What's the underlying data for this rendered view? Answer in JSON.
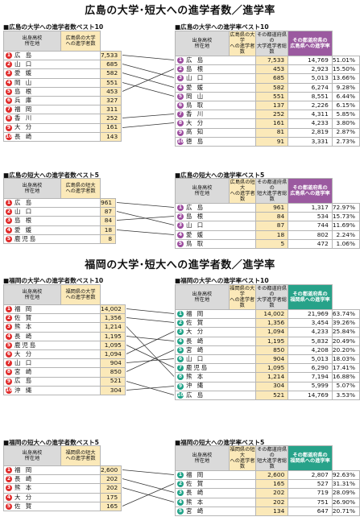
{
  "colors": {
    "red": "#e02b2b",
    "purple": "#9c4c9e",
    "green": "#20a287",
    "highlight_cream": "#fbe9b9",
    "highlight_purple": "#9b5aa0",
    "highlight_teal": "#27a289"
  },
  "sections": [
    {
      "title": "広島の大学･短大への進学者数／進学率",
      "blocks": [
        {
          "left": {
            "caption": "■広島の大学への進学者数ベスト10",
            "headers": [
              "出身高校\n所在地",
              "広島県の大学\nへの進学者数"
            ],
            "rows": [
              {
                "rank": "1",
                "name": "広 島",
                "value": "7,533"
              },
              {
                "rank": "2",
                "name": "山 口",
                "value": "685"
              },
              {
                "rank": "3",
                "name": "愛 媛",
                "value": "582"
              },
              {
                "rank": "4",
                "name": "岡 山",
                "value": "551"
              },
              {
                "rank": "5",
                "name": "島 根",
                "value": "453"
              },
              {
                "rank": "6",
                "name": "兵 庫",
                "value": "327"
              },
              {
                "rank": "7",
                "name": "福 岡",
                "value": "311"
              },
              {
                "rank": "8",
                "name": "香 川",
                "value": "252"
              },
              {
                "rank": "9",
                "name": "大 分",
                "value": "161"
              },
              {
                "rank": "10",
                "name": "長 崎",
                "value": "143"
              }
            ]
          },
          "right": {
            "caption": "■広島の大学への進学率ベスト10",
            "headers": [
              "出身高校\n所在地",
              "広島県の大学\nへの進学者数",
              "その都道府県の\n大学進学者総数",
              "その都道府県の\n広島県への進学率"
            ],
            "rows": [
              {
                "rank": "1",
                "name": "広 島",
                "value": "7,533",
                "total": "14,769",
                "rate": "51.01%"
              },
              {
                "rank": "2",
                "name": "島 根",
                "value": "453",
                "total": "2,923",
                "rate": "15.50%"
              },
              {
                "rank": "3",
                "name": "山 口",
                "value": "685",
                "total": "5,013",
                "rate": "13.66%"
              },
              {
                "rank": "4",
                "name": "愛 媛",
                "value": "582",
                "total": "6,274",
                "rate": "9.28%"
              },
              {
                "rank": "5",
                "name": "岡 山",
                "value": "551",
                "total": "8,551",
                "rate": "6.44%"
              },
              {
                "rank": "6",
                "name": "鳥 取",
                "value": "137",
                "total": "2,226",
                "rate": "6.15%"
              },
              {
                "rank": "7",
                "name": "香 川",
                "value": "252",
                "total": "4,311",
                "rate": "5.85%"
              },
              {
                "rank": "8",
                "name": "大 分",
                "value": "161",
                "total": "4,233",
                "rate": "3.80%"
              },
              {
                "rank": "9",
                "name": "高 知",
                "value": "81",
                "total": "2,819",
                "rate": "2.87%"
              },
              {
                "rank": "10",
                "name": "徳 島",
                "value": "91",
                "total": "3,331",
                "rate": "2.73%"
              }
            ]
          }
        },
        {
          "left": {
            "caption": "■広島の短大への進学者数ベスト5",
            "headers": [
              "出身高校\n所在地",
              "広島県の短大\nへの進学者数"
            ],
            "rows": [
              {
                "rank": "1",
                "name": "広 島",
                "value": "961"
              },
              {
                "rank": "2",
                "name": "山 口",
                "value": "87"
              },
              {
                "rank": "3",
                "name": "島 根",
                "value": "84"
              },
              {
                "rank": "4",
                "name": "愛 媛",
                "value": "18"
              },
              {
                "rank": "5",
                "name": "鹿児島",
                "value": "8"
              }
            ]
          },
          "right": {
            "caption": "■広島の短大への進学率ベスト5",
            "headers": [
              "出身高校\n所在地",
              "広島県の短大\nへの進学者数",
              "その都道府県の\n短大進学者総数",
              "その都道府県の\n広島県への進学率"
            ],
            "rows": [
              {
                "rank": "1",
                "name": "広 島",
                "value": "961",
                "total": "1,317",
                "rate": "72.97%"
              },
              {
                "rank": "2",
                "name": "島 根",
                "value": "84",
                "total": "534",
                "rate": "15.73%"
              },
              {
                "rank": "3",
                "name": "山 口",
                "value": "87",
                "total": "744",
                "rate": "11.69%"
              },
              {
                "rank": "4",
                "name": "愛 媛",
                "value": "18",
                "total": "802",
                "rate": "2.24%"
              },
              {
                "rank": "5",
                "name": "鳥 取",
                "value": "5",
                "total": "472",
                "rate": "1.06%"
              }
            ]
          }
        }
      ]
    },
    {
      "title": "福岡の大学･短大への進学者数／進学率",
      "blocks": [
        {
          "left": {
            "caption": "■福岡の大学への進学者数ベスト10",
            "headers": [
              "出身高校\n所在地",
              "福岡県の大学\nへの進学者数"
            ],
            "rows": [
              {
                "rank": "1",
                "name": "福 岡",
                "value": "14,002"
              },
              {
                "rank": "2",
                "name": "佐 賀",
                "value": "1,356"
              },
              {
                "rank": "3",
                "name": "熊 本",
                "value": "1,214"
              },
              {
                "rank": "4",
                "name": "長 崎",
                "value": "1,195"
              },
              {
                "rank": "5",
                "name": "鹿児島",
                "value": "1,095"
              },
              {
                "rank": "6",
                "name": "大 分",
                "value": "1,094"
              },
              {
                "rank": "7",
                "name": "山 口",
                "value": "904"
              },
              {
                "rank": "8",
                "name": "宮 崎",
                "value": "850"
              },
              {
                "rank": "9",
                "name": "広 島",
                "value": "521"
              },
              {
                "rank": "10",
                "name": "沖 縄",
                "value": "304"
              }
            ]
          },
          "right": {
            "caption": "■福岡の大学への進学率ベスト10",
            "headers": [
              "出身高校\n所在地",
              "福岡県の大学\nへの進学者数",
              "その都道府県の\n大学進学者総数",
              "その都道府県の\n福岡県への進学率"
            ],
            "rows": [
              {
                "rank": "1",
                "name": "福 岡",
                "value": "14,002",
                "total": "21,969",
                "rate": "63.74%"
              },
              {
                "rank": "2",
                "name": "佐 賀",
                "value": "1,356",
                "total": "3,454",
                "rate": "39.26%"
              },
              {
                "rank": "3",
                "name": "大 分",
                "value": "1,094",
                "total": "4,233",
                "rate": "25.84%"
              },
              {
                "rank": "4",
                "name": "長 崎",
                "value": "1,195",
                "total": "5,832",
                "rate": "20.49%"
              },
              {
                "rank": "5",
                "name": "宮 崎",
                "value": "850",
                "total": "4,208",
                "rate": "20.20%"
              },
              {
                "rank": "6",
                "name": "山 口",
                "value": "904",
                "total": "5,013",
                "rate": "18.03%"
              },
              {
                "rank": "7",
                "name": "鹿児島",
                "value": "1,095",
                "total": "6,290",
                "rate": "17.41%"
              },
              {
                "rank": "8",
                "name": "熊 本",
                "value": "1,214",
                "total": "7,194",
                "rate": "16.88%"
              },
              {
                "rank": "9",
                "name": "沖 縄",
                "value": "304",
                "total": "5,999",
                "rate": "5.07%"
              },
              {
                "rank": "10",
                "name": "広 島",
                "value": "521",
                "total": "14,769",
                "rate": "3.53%"
              }
            ]
          }
        },
        {
          "left": {
            "caption": "■福岡の短大への進学者数ベスト5",
            "headers": [
              "出身高校\n所在地",
              "福岡県の短大\nへの進学者数"
            ],
            "rows": [
              {
                "rank": "1",
                "name": "福 岡",
                "value": "2,600"
              },
              {
                "rank": "2",
                "name": "長 崎",
                "value": "202"
              },
              {
                "rank": "3",
                "name": "熊 本",
                "value": "202"
              },
              {
                "rank": "4",
                "name": "大 分",
                "value": "175"
              },
              {
                "rank": "5",
                "name": "佐 賀",
                "value": "165"
              }
            ]
          },
          "right": {
            "caption": "■福岡の短大への進学率ベスト5",
            "headers": [
              "出身高校\n所在地",
              "福岡県の短大\nへの進学者数",
              "その都道府県の\n短大進学者総数",
              "その都道府県の\n福岡県への進学率"
            ],
            "rows": [
              {
                "rank": "1",
                "name": "福 岡",
                "value": "2,600",
                "total": "2,807",
                "rate": "92.63%"
              },
              {
                "rank": "2",
                "name": "佐 賀",
                "value": "165",
                "total": "527",
                "rate": "31.31%"
              },
              {
                "rank": "3",
                "name": "長 崎",
                "value": "202",
                "total": "719",
                "rate": "28.09%"
              },
              {
                "rank": "4",
                "name": "熊 本",
                "value": "202",
                "total": "751",
                "rate": "26.90%"
              },
              {
                "rank": "5",
                "name": "宮 崎",
                "value": "134",
                "total": "647",
                "rate": "20.71%"
              }
            ]
          }
        }
      ]
    }
  ]
}
